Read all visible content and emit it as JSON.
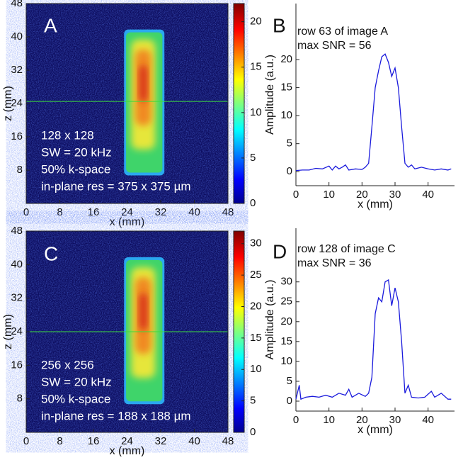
{
  "chart_data": [
    {
      "type": "heatmap",
      "panel_label": "A",
      "xlabel": "x (mm)",
      "ylabel": "z (mm)",
      "xlim": [
        0,
        48
      ],
      "ylim": [
        0,
        48
      ],
      "xticks": [
        0,
        8,
        16,
        24,
        32,
        40,
        48
      ],
      "yticks": [
        8,
        16,
        24,
        32,
        40,
        48
      ],
      "colorbar": {
        "lim": [
          0,
          22
        ],
        "ticks": [
          0,
          5,
          10,
          15,
          20
        ]
      },
      "row_marker": 24.5,
      "annotations": [
        "128 x 128",
        "SW = 20 kHz",
        "50% k-space",
        "in-plane res = 375 x 375 µm"
      ]
    },
    {
      "type": "line",
      "panel_label": "B",
      "xlabel": "x (mm)",
      "ylabel": "Amplitude (a.u.)",
      "color": "#1a1adc",
      "annotations": [
        "row 63 of image A",
        "max SNR = 56"
      ],
      "xlim": [
        0,
        48
      ],
      "ylim": [
        -2.5,
        30
      ],
      "xticks": [
        0,
        10,
        20,
        30,
        40
      ],
      "yticks": [
        0,
        5,
        10,
        15,
        20
      ],
      "x": [
        0,
        2,
        4,
        6,
        8,
        10,
        11,
        12,
        13,
        14,
        15,
        16,
        18,
        20,
        21,
        22,
        23,
        24,
        25,
        26,
        27,
        28,
        29,
        30,
        31,
        32,
        33,
        34,
        35,
        36,
        38,
        40,
        42,
        44,
        46,
        47
      ],
      "values": [
        0.2,
        0.3,
        0.3,
        0.6,
        0.5,
        1.0,
        0.3,
        1.0,
        0.5,
        0.8,
        1.2,
        0.3,
        0.5,
        0.4,
        0.8,
        1.5,
        8,
        15,
        18,
        20.5,
        21,
        19.5,
        17,
        18.5,
        15,
        8,
        1.5,
        0.8,
        1.2,
        0.5,
        0.8,
        0.5,
        0.3,
        0.5,
        0.3,
        0.5
      ]
    },
    {
      "type": "heatmap",
      "panel_label": "C",
      "xlabel": "x (mm)",
      "ylabel": "z (mm)",
      "xlim": [
        0,
        48
      ],
      "ylim": [
        0,
        48
      ],
      "xticks": [
        0,
        8,
        16,
        24,
        32,
        40,
        48
      ],
      "yticks": [
        8,
        16,
        24,
        32,
        40,
        48
      ],
      "colorbar": {
        "lim": [
          0,
          32
        ],
        "ticks": [
          0,
          5,
          10,
          15,
          20,
          25,
          30
        ]
      },
      "row_marker": 24,
      "annotations": [
        "256 x 256",
        "SW = 20 kHz",
        "50% k-space",
        "in-plane res = 188 x 188 µm"
      ]
    },
    {
      "type": "line",
      "panel_label": "D",
      "xlabel": "x (mm)",
      "ylabel": "Amplitude (a.u.)",
      "color": "#1a1adc",
      "annotations": [
        "row 128 of image C",
        "max SNR = 36"
      ],
      "xlim": [
        0,
        48
      ],
      "ylim": [
        -2.5,
        43.5
      ],
      "xticks": [
        0,
        10,
        20,
        30,
        40
      ],
      "yticks": [
        0,
        5,
        10,
        15,
        20,
        25,
        30
      ],
      "x": [
        0,
        1,
        1.5,
        3,
        5,
        7,
        9,
        11,
        13,
        15,
        16,
        17,
        19,
        21,
        22,
        23,
        24,
        25,
        26,
        27,
        28,
        29,
        30,
        31,
        32,
        33,
        34,
        35,
        37,
        39,
        41,
        42,
        44,
        46,
        47
      ],
      "values": [
        0.5,
        4,
        0.5,
        1,
        1.2,
        1,
        1.5,
        1,
        2,
        1.5,
        3,
        1,
        2,
        1.2,
        2,
        6,
        22,
        26,
        25,
        30,
        30.5,
        24,
        28.5,
        25,
        15,
        2,
        4,
        1,
        0.8,
        1,
        2.5,
        1,
        2,
        0.5,
        0.5
      ]
    }
  ]
}
